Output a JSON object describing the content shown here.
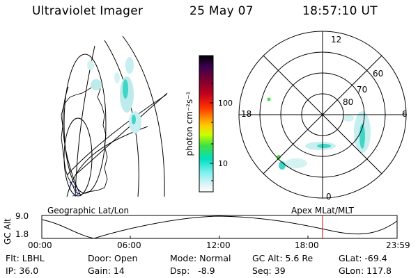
{
  "header": {
    "title": "Ultraviolet Imager",
    "date": "25 May 07",
    "time": "18:57:10 UT"
  },
  "colorbar": {
    "label": "photon cm⁻²s⁻¹",
    "ticks": [
      {
        "label": "100",
        "value": 100
      },
      {
        "label": "10",
        "value": 10
      }
    ],
    "scale": "log",
    "colors": [
      "#000000",
      "#3a0050",
      "#7a0030",
      "#c00020",
      "#ff3000",
      "#ff9000",
      "#ffd000",
      "#c8ff00",
      "#40e040",
      "#00e0c0",
      "#80f0f0",
      "#d8f4f4",
      "#ffffff"
    ]
  },
  "polar_plot": {
    "labels": {
      "top": "12",
      "bottom": "0",
      "left": "18",
      "right": "6",
      "lat60": "60",
      "lat70": "70",
      "lat80": "80"
    }
  },
  "map_captions": {
    "left": "Geographic Lat/Lon",
    "right": "Apex MLat/MLT"
  },
  "altitude_plot": {
    "ylabel": "GC Alt",
    "yticks": [
      "9.0",
      "1.8"
    ],
    "xticks": [
      "00:00",
      "06:00",
      "12:00",
      "18:00",
      "23:59"
    ],
    "current_time_marker": "18:57",
    "marker_color": "#e00000"
  },
  "info": {
    "flt": "Flt: LBHL",
    "ip": "IP: 36.0",
    "door": "Door: Open",
    "gain": "Gain: 14",
    "mode": "Mode: Normal",
    "dsp": "Dsp:   -8.9",
    "gc_alt": "GC Alt: 5.6 Re",
    "seq": "Seq: 39",
    "glat": "GLat: -69.4",
    "glon": "GLon: 117.8"
  }
}
